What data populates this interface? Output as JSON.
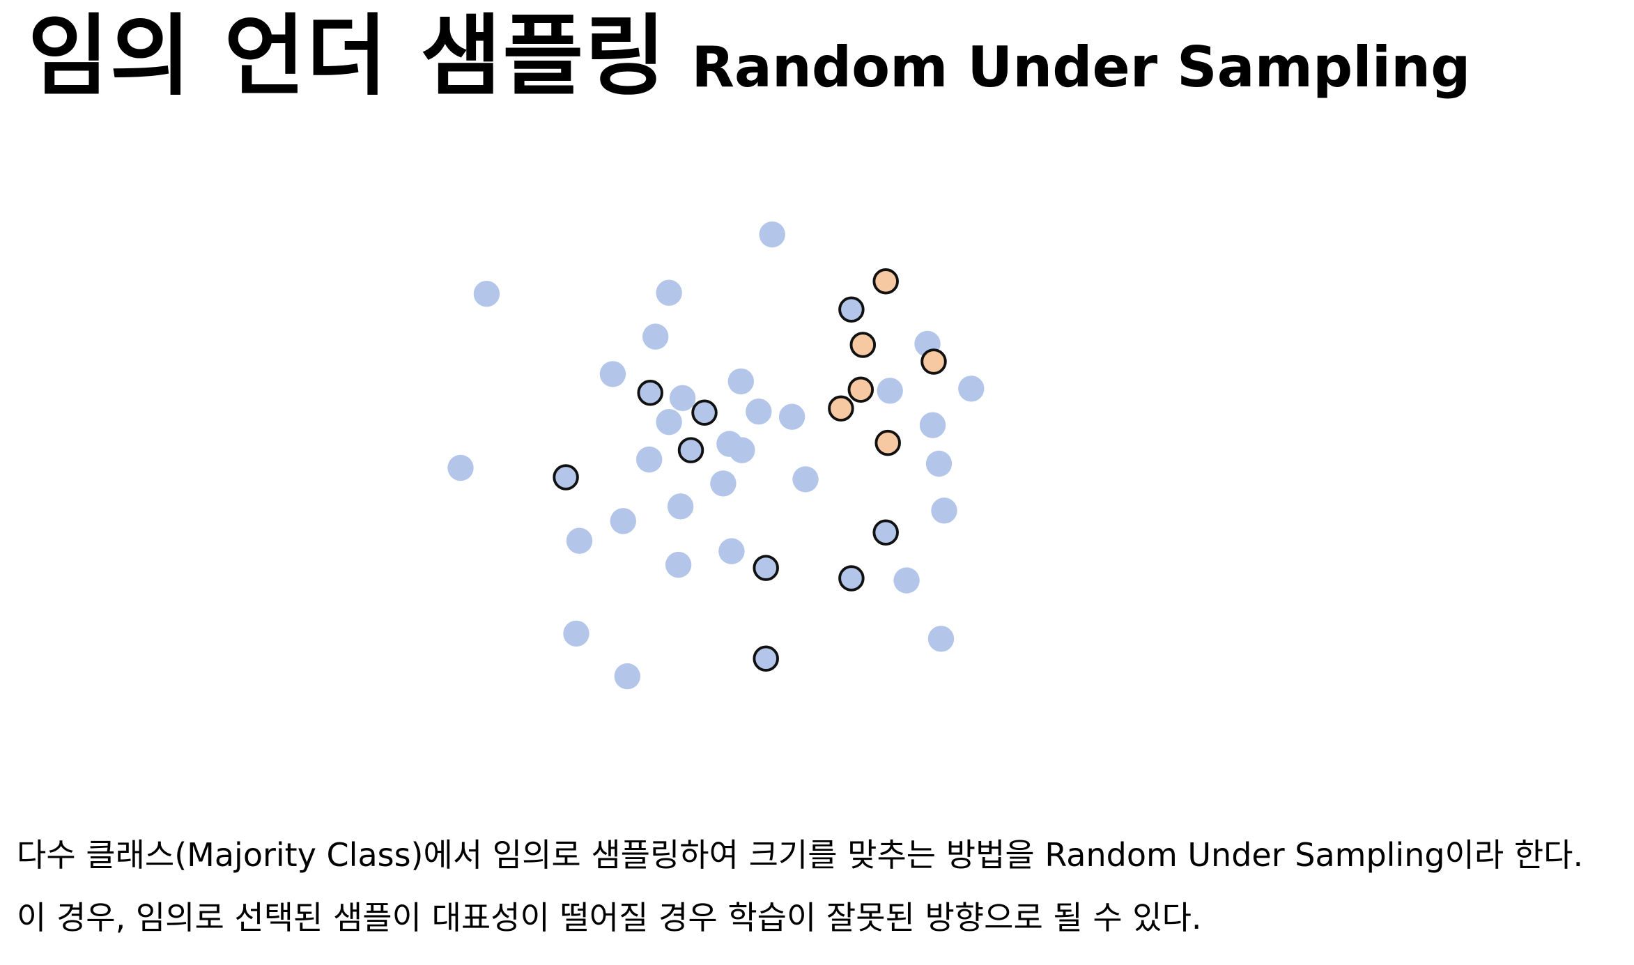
{
  "title": {
    "korean": "임의 언더 샘플링",
    "english": "Random Under Sampling"
  },
  "description": {
    "line1": "다수 클래스(Majority Class)에서 임의로 샘플링하여 크기를 맞추는 방법을 Random Under Sampling이라 한다.",
    "line2": "이 경우, 임의로 선택된 샘플이 대표성이 떨어질 경우 학습이 잘못된 방향으로 될 수 있다."
  },
  "colors": {
    "majority": "#b3c6e9",
    "minority": "#f7c9a3",
    "selected_outline": "#111111"
  },
  "scatter": {
    "majority_unselected": [
      [
        741,
        225
      ],
      [
        467,
        282
      ],
      [
        642,
        281
      ],
      [
        629,
        323
      ],
      [
        588,
        359
      ],
      [
        890,
        330
      ],
      [
        711,
        366
      ],
      [
        655,
        382
      ],
      [
        854,
        375
      ],
      [
        932,
        373
      ],
      [
        642,
        405
      ],
      [
        728,
        395
      ],
      [
        760,
        400
      ],
      [
        895,
        408
      ],
      [
        700,
        426
      ],
      [
        712,
        432
      ],
      [
        623,
        441
      ],
      [
        442,
        449
      ],
      [
        901,
        445
      ],
      [
        773,
        460
      ],
      [
        694,
        464
      ],
      [
        653,
        486
      ],
      [
        906,
        490
      ],
      [
        598,
        500
      ],
      [
        556,
        519
      ],
      [
        702,
        529
      ],
      [
        651,
        542
      ],
      [
        870,
        557
      ],
      [
        553,
        608
      ],
      [
        903,
        613
      ],
      [
        602,
        649
      ]
    ],
    "majority_selected": [
      [
        817,
        297
      ],
      [
        624,
        377
      ],
      [
        676,
        396
      ],
      [
        663,
        432
      ],
      [
        543,
        458
      ],
      [
        850,
        511
      ],
      [
        735,
        545
      ],
      [
        817,
        555
      ],
      [
        735,
        632
      ]
    ],
    "minority": [
      [
        850,
        270
      ],
      [
        828,
        331
      ],
      [
        896,
        347
      ],
      [
        826,
        374
      ],
      [
        807,
        392
      ],
      [
        852,
        425
      ]
    ]
  }
}
